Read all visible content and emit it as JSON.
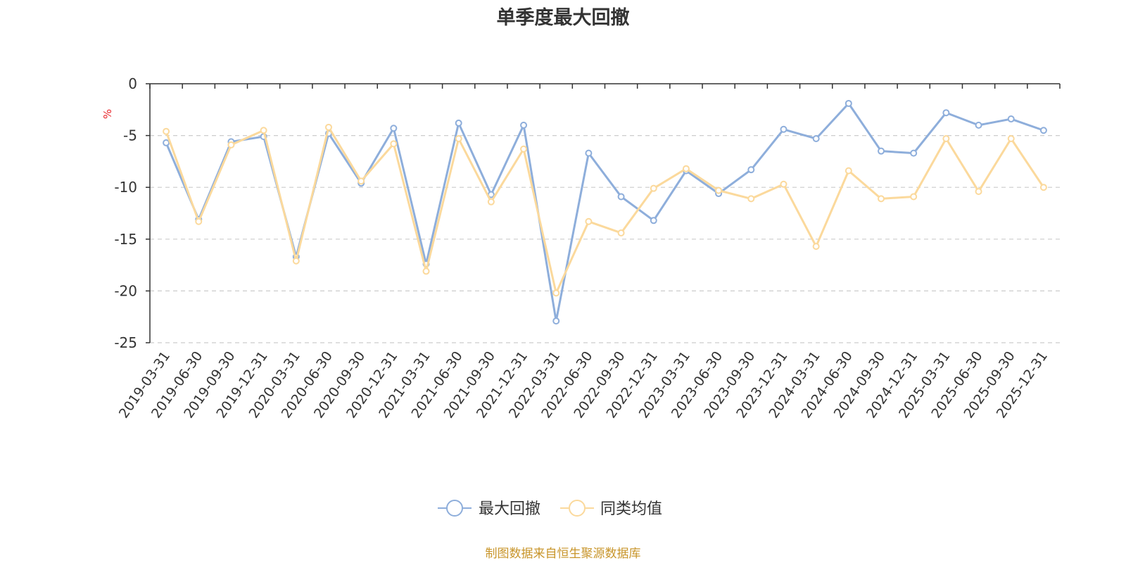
{
  "colors": {
    "series_max_drawdown": "#8eaedb",
    "series_peer_avg": "#fbd99c",
    "unit": "#e8262b",
    "source": "#c8952b",
    "grid": "#cccccc",
    "axis": "#333333"
  },
  "chart_data": {
    "type": "line",
    "title": "单季度最大回撤",
    "ylabel": "%",
    "ylim": [
      -25,
      0
    ],
    "yticks": [
      0,
      -5,
      -10,
      -15,
      -20,
      -25
    ],
    "grid": "horizontal-dashed",
    "legend_position": "bottom-center",
    "categories": [
      "2019-03-31",
      "2019-06-30",
      "2019-09-30",
      "2019-12-31",
      "2020-03-31",
      "2020-06-30",
      "2020-09-30",
      "2020-12-31",
      "2021-03-31",
      "2021-06-30",
      "2021-09-30",
      "2021-12-31",
      "2022-03-31",
      "2022-06-30",
      "2022-09-30",
      "2022-12-31",
      "2023-03-31",
      "2023-06-30",
      "2023-09-30",
      "2023-12-31",
      "2024-03-31",
      "2024-06-30",
      "2024-09-30",
      "2024-12-31",
      "2025-03-31",
      "2025-06-30",
      "2025-09-30",
      "2025-12-31"
    ],
    "series": [
      {
        "name": "最大回撤",
        "values": [
          -5.7,
          -13.1,
          -5.6,
          -5.1,
          -16.7,
          -4.8,
          -9.6,
          -4.3,
          -17.4,
          -3.8,
          -10.7,
          -4.0,
          -22.9,
          -6.7,
          -10.9,
          -13.2,
          -8.4,
          -10.6,
          -8.3,
          -4.4,
          -5.3,
          -1.9,
          -6.5,
          -6.7,
          -2.8,
          -4.0,
          -3.4,
          -4.5
        ]
      },
      {
        "name": "同类均值",
        "values": [
          -4.6,
          -13.3,
          -5.9,
          -4.5,
          -17.1,
          -4.2,
          -9.4,
          -5.8,
          -18.1,
          -5.3,
          -11.4,
          -6.3,
          -20.2,
          -13.3,
          -14.4,
          -10.1,
          -8.2,
          -10.3,
          -11.1,
          -9.7,
          -15.7,
          -8.4,
          -11.1,
          -10.9,
          -5.3,
          -10.4,
          -5.3,
          -10.0
        ]
      }
    ]
  },
  "source_note": "制图数据来自恒生聚源数据库"
}
